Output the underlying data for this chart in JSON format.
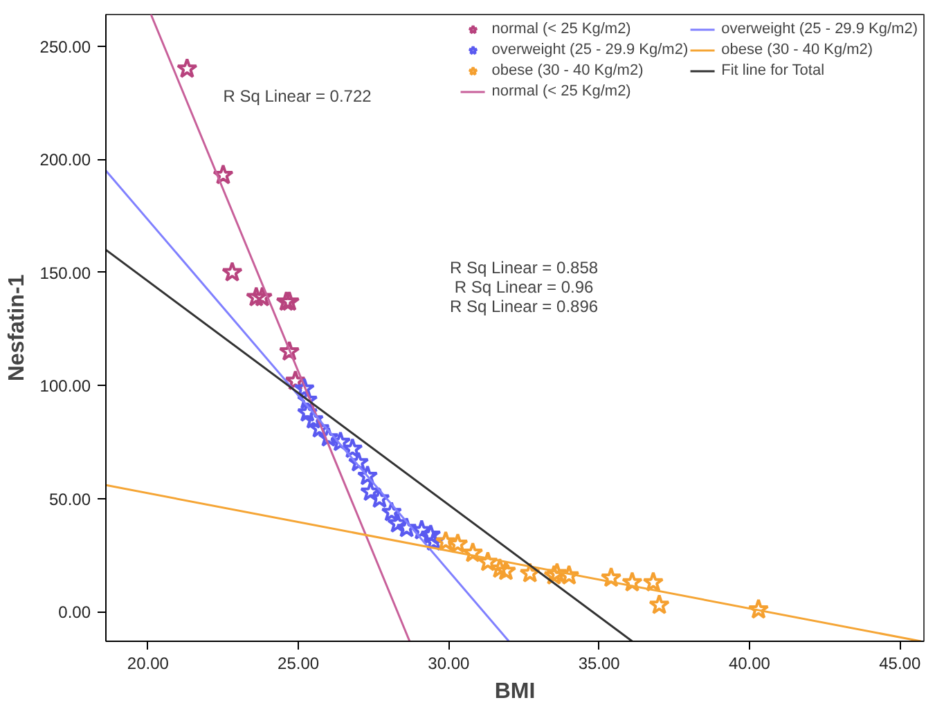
{
  "chart_data": {
    "type": "scatter",
    "xlabel": "BMI",
    "ylabel": "Nesfatin-1",
    "xlim": [
      18.6,
      45.8
    ],
    "ylim": [
      -13,
      264
    ],
    "xticks": [
      {
        "value": 20,
        "label": "20.00"
      },
      {
        "value": 25,
        "label": "25.00"
      },
      {
        "value": 30,
        "label": "30.00"
      },
      {
        "value": 35,
        "label": "35.00"
      },
      {
        "value": 40,
        "label": "40.00"
      },
      {
        "value": 45,
        "label": "45.00"
      }
    ],
    "yticks": [
      {
        "value": 0,
        "label": "0.00"
      },
      {
        "value": 50,
        "label": "50.00"
      },
      {
        "value": 100,
        "label": "100.00"
      },
      {
        "value": 150,
        "label": "150.00"
      },
      {
        "value": 200,
        "label": "200.00"
      },
      {
        "value": 250,
        "label": "250.00"
      }
    ],
    "grid": false,
    "legend": "top right",
    "annotations": [
      "R Sq Linear = 0.722",
      "R Sq Linear = 0.858",
      "R Sq Linear = 0.96",
      "R Sq Linear = 0.896"
    ],
    "series": [
      {
        "name": "normal (< 25 Kg/m2)",
        "marker": "star",
        "color": "#b8437e",
        "x": [
          21.3,
          22.5,
          22.8,
          23.6,
          23.8,
          24.6,
          24.7,
          24.7,
          24.9
        ],
        "values": [
          240,
          193,
          150,
          139,
          139,
          137,
          137,
          115,
          102
        ]
      },
      {
        "name": "overweight (25 - 29.9 Kg/m2)",
        "marker": "star",
        "color": "#5a5af0",
        "x": [
          25.2,
          25.3,
          25.3,
          25.5,
          25.7,
          26.0,
          26.4,
          26.8,
          27.0,
          27.3,
          27.4,
          27.7,
          28.1,
          28.3,
          28.6,
          29.1,
          29.4,
          29.5
        ],
        "values": [
          98.6,
          93.6,
          88,
          85,
          81,
          77,
          75,
          72,
          66,
          60,
          53,
          50,
          44,
          39,
          37,
          36,
          34,
          31
        ]
      },
      {
        "name": "obese (30 - 40 Kg/m2)",
        "marker": "star",
        "color": "#f5a030",
        "x": [
          29.9,
          30.3,
          30.8,
          31.3,
          31.7,
          31.9,
          32.7,
          33.5,
          33.6,
          34.0,
          35.4,
          36.1,
          36.8,
          37.0,
          40.3
        ],
        "values": [
          31,
          30,
          26,
          22,
          19,
          18,
          17,
          16,
          17,
          16,
          15,
          13,
          13,
          3,
          1
        ]
      },
      {
        "name": "normal (< 25 Kg/m2)",
        "type": "line",
        "color": "#c8609a",
        "x": [
          20.1,
          28.7
        ],
        "values": [
          264,
          -13
        ]
      },
      {
        "name": "overweight (25 - 29.9 Kg/m2)",
        "type": "line",
        "color": "#8080ff",
        "x": [
          18.6,
          32.0
        ],
        "values": [
          195,
          -13
        ]
      },
      {
        "name": "obese (30 - 40 Kg/m2)",
        "type": "line",
        "color": "#f5a535",
        "x": [
          18.6,
          45.7
        ],
        "values": [
          56,
          -13
        ]
      },
      {
        "name": "Fit line for Total",
        "type": "line",
        "color": "#333333",
        "x": [
          18.6,
          36.1
        ],
        "values": [
          160,
          -13
        ]
      }
    ]
  }
}
